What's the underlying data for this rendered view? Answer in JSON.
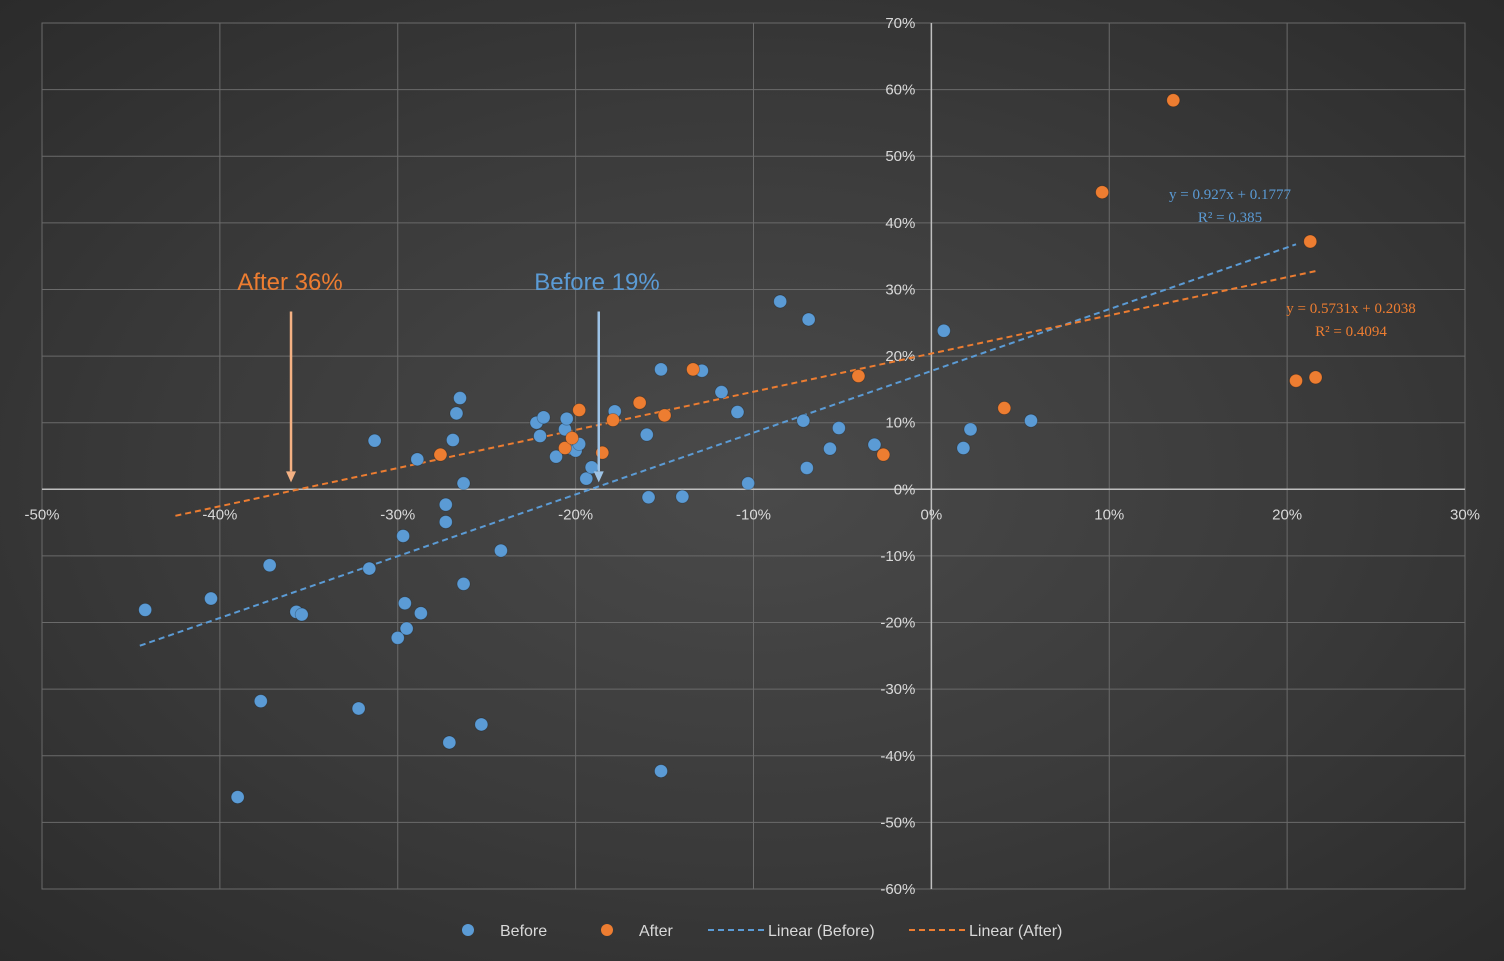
{
  "chart_data": {
    "type": "scatter",
    "xlim": [
      -0.5,
      0.3
    ],
    "ylim": [
      -0.6,
      0.7
    ],
    "x_ticks": [
      -0.5,
      -0.4,
      -0.3,
      -0.2,
      -0.1,
      0,
      0.1,
      0.2,
      0.3
    ],
    "y_ticks": [
      0.7,
      0.6,
      0.5,
      0.4,
      0.3,
      0.2,
      0.1,
      0,
      -0.1,
      -0.2,
      -0.3,
      -0.4,
      -0.5,
      -0.6
    ],
    "x_tick_labels": [
      "-50%",
      "-40%",
      "-30%",
      "-20%",
      "-10%",
      "0%",
      "10%",
      "20%",
      "30%"
    ],
    "y_tick_labels": [
      "70%",
      "60%",
      "50%",
      "40%",
      "30%",
      "20%",
      "10%",
      "0%",
      "-10%",
      "-20%",
      "-30%",
      "-40%",
      "-50%",
      "-60%"
    ],
    "grid": true,
    "legend_position": "bottom",
    "series": [
      {
        "name": "Before",
        "color": "#5b9bd5",
        "points": [
          [
            -0.442,
            -0.181
          ],
          [
            -0.405,
            -0.164
          ],
          [
            -0.39,
            -0.462
          ],
          [
            -0.377,
            -0.318
          ],
          [
            -0.372,
            -0.114
          ],
          [
            -0.357,
            -0.184
          ],
          [
            -0.354,
            -0.188
          ],
          [
            -0.322,
            -0.329
          ],
          [
            -0.316,
            -0.119
          ],
          [
            -0.313,
            0.073
          ],
          [
            -0.3,
            -0.223
          ],
          [
            -0.297,
            -0.07
          ],
          [
            -0.296,
            -0.171
          ],
          [
            -0.295,
            -0.209
          ],
          [
            -0.289,
            0.045
          ],
          [
            -0.287,
            -0.186
          ],
          [
            -0.273,
            -0.023
          ],
          [
            -0.273,
            -0.049
          ],
          [
            -0.271,
            -0.38
          ],
          [
            -0.269,
            0.074
          ],
          [
            -0.267,
            0.114
          ],
          [
            -0.265,
            0.137
          ],
          [
            -0.263,
            0.009
          ],
          [
            -0.263,
            -0.142
          ],
          [
            -0.253,
            -0.353
          ],
          [
            -0.242,
            -0.092
          ],
          [
            -0.222,
            0.1
          ],
          [
            -0.22,
            0.08
          ],
          [
            -0.218,
            0.108
          ],
          [
            -0.211,
            0.049
          ],
          [
            -0.206,
            0.09
          ],
          [
            -0.205,
            0.106
          ],
          [
            -0.202,
            0.061
          ],
          [
            -0.2,
            0.058
          ],
          [
            -0.198,
            0.068
          ],
          [
            -0.194,
            0.016
          ],
          [
            -0.191,
            0.033
          ],
          [
            -0.178,
            0.117
          ],
          [
            -0.16,
            0.082
          ],
          [
            -0.159,
            -0.012
          ],
          [
            -0.152,
            0.18
          ],
          [
            -0.14,
            -0.011
          ],
          [
            -0.129,
            0.178
          ],
          [
            -0.118,
            0.146
          ],
          [
            -0.109,
            0.116
          ],
          [
            -0.103,
            0.009
          ],
          [
            -0.085,
            0.282
          ],
          [
            -0.072,
            0.103
          ],
          [
            -0.07,
            0.032
          ],
          [
            -0.069,
            0.255
          ],
          [
            -0.057,
            0.061
          ],
          [
            -0.052,
            0.092
          ],
          [
            -0.032,
            0.067
          ],
          [
            0.007,
            0.238
          ],
          [
            0.018,
            0.062
          ],
          [
            0.022,
            0.09
          ],
          [
            0.056,
            0.103
          ],
          [
            -0.152,
            -0.423
          ]
        ]
      },
      {
        "name": "After",
        "color": "#ed7d31",
        "points": [
          [
            -0.276,
            0.052
          ],
          [
            -0.206,
            0.062
          ],
          [
            -0.202,
            0.077
          ],
          [
            -0.198,
            0.119
          ],
          [
            -0.185,
            0.055
          ],
          [
            -0.179,
            0.104
          ],
          [
            -0.164,
            0.13
          ],
          [
            -0.15,
            0.111
          ],
          [
            -0.134,
            0.18
          ],
          [
            -0.041,
            0.17
          ],
          [
            -0.027,
            0.052
          ],
          [
            0.041,
            0.122
          ],
          [
            0.096,
            0.446
          ],
          [
            0.136,
            0.584
          ],
          [
            0.205,
            0.163
          ],
          [
            0.213,
            0.372
          ],
          [
            0.216,
            0.168
          ]
        ]
      }
    ],
    "trendlines": [
      {
        "name": "Linear (Before)",
        "color": "#5b9bd5",
        "slope": 0.927,
        "intercept": 0.1777,
        "x_range": [
          -0.445,
          0.205
        ],
        "equation": "y = 0.927x + 0.1777",
        "r2": "R² = 0.385"
      },
      {
        "name": "Linear (After)",
        "color": "#ed7d31",
        "slope": 0.5731,
        "intercept": 0.2038,
        "x_range": [
          -0.425,
          0.216
        ],
        "equation": "y = 0.5731x + 0.2038",
        "r2": "R² = 0.4094"
      }
    ],
    "annotations": [
      {
        "text": "After 36%",
        "color": "#f4b183",
        "text_color": "#ed7d31",
        "arrow_x": -0.36,
        "arrow_from_y": 0.27,
        "arrow_to_y": 0.015
      },
      {
        "text": "Before 19%",
        "color": "#9dc3e6",
        "text_color": "#5b9bd5",
        "arrow_x": -0.187,
        "arrow_from_y": 0.27,
        "arrow_to_y": 0.015
      }
    ],
    "legend": [
      {
        "label": "Before",
        "kind": "marker",
        "color": "#5b9bd5"
      },
      {
        "label": "After",
        "kind": "marker",
        "color": "#ed7d31"
      },
      {
        "label": "Linear (Before)",
        "kind": "dashed-line",
        "color": "#5b9bd5"
      },
      {
        "label": "Linear (After)",
        "kind": "dashed-line",
        "color": "#ed7d31"
      }
    ]
  }
}
